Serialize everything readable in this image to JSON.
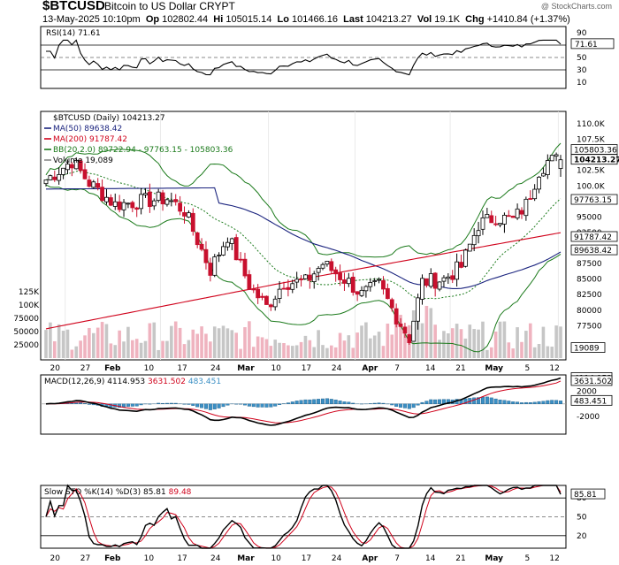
{
  "header": {
    "symbol": "$BTCUSD",
    "name": "Bitcoin to US Dollar  CRYPT",
    "date": "13-May-2025 10:10pm",
    "open_label": "Op",
    "open": "102802.44",
    "high_label": "Hi",
    "high": "105015.14",
    "low_label": "Lo",
    "low": "101466.16",
    "last_label": "Last",
    "last": "104213.27",
    "vol_label": "Vol",
    "vol": "19.1K",
    "chg_label": "Chg",
    "chg": "+1410.84 (+1.37%)",
    "watermark": "@ StockCharts.com"
  },
  "colors": {
    "up": "#000000",
    "down": "#c8102e",
    "ma50": "#1a237e",
    "ma200": "#d0021b",
    "bb": "#1b7a1b",
    "macd_hist": "#3b8fc4",
    "volume": "#c6c6c6",
    "sto_d": "#d0021b"
  },
  "chart_data": [
    {
      "panel": "rsi",
      "type": "line",
      "legend": "RSI(14) 71.61",
      "current_label": "71.61",
      "yticks": [
        "90",
        "70",
        "50",
        "30",
        "10"
      ],
      "ylim": [
        0,
        100
      ],
      "levels": [
        70,
        30
      ]
    },
    {
      "panel": "price",
      "type": "candlestick",
      "legend": [
        {
          "key": "title",
          "text": "$BTCUSD (Daily) 104213.27"
        },
        {
          "key": "ma50",
          "text": "MA(50) 89638.42"
        },
        {
          "key": "ma200",
          "text": "MA(200) 91787.42"
        },
        {
          "key": "bb",
          "text": "BB(20,2.0) 89722.94 - 97763.15 - 105803.36"
        },
        {
          "key": "volume",
          "text": "Volume 19,089"
        }
      ],
      "ylim": [
        72000,
        112000
      ],
      "yticks": [
        "110.0K",
        "107.5K",
        "102.5K",
        "100.0K",
        "95000",
        "92500",
        "87500",
        "85000",
        "82500",
        "80000",
        "77500"
      ],
      "price_tags": [
        {
          "text": "105803.36",
          "value": 105803.36,
          "bold": false
        },
        {
          "text": "104213.27",
          "value": 104213.27,
          "bold": true
        },
        {
          "text": "97763.15",
          "value": 97763.15,
          "bold": false
        },
        {
          "text": "91787.42",
          "value": 91787.42,
          "bold": false
        },
        {
          "text": "89638.42",
          "value": 89638.42,
          "bold": false
        }
      ],
      "volume_ticks": [
        "125K",
        "100K",
        "75000",
        "50000",
        "25000"
      ],
      "volume_tag": "19089",
      "x_labels": [
        "20",
        "27",
        "Feb",
        "10",
        "17",
        "24",
        "Mar",
        "10",
        "17",
        "24",
        "Apr",
        "7",
        "14",
        "21",
        "May",
        "5",
        "12"
      ]
    },
    {
      "panel": "macd",
      "type": "line",
      "legend": {
        "name": "MACD(12,26,9)",
        "macd": "4114.953",
        "signal": "3631.502",
        "hist": "483.451"
      },
      "tags": [
        "4114.953",
        "3631.502",
        "483.451"
      ],
      "yticks": [
        "2000",
        "-2000"
      ],
      "ylim": [
        -4800,
        4600
      ]
    },
    {
      "panel": "sto",
      "type": "line",
      "legend": {
        "name": "Slow STO %K(14) %D(3)",
        "k": "85.81",
        "d": "89.48"
      },
      "tag": "85.81",
      "yticks": [
        "80",
        "50",
        "20"
      ],
      "ylim": [
        0,
        100
      ],
      "x_labels": [
        "20",
        "27",
        "Feb",
        "10",
        "17",
        "24",
        "Mar",
        "10",
        "17",
        "24",
        "Apr",
        "7",
        "14",
        "21",
        "May",
        "5",
        "12"
      ]
    }
  ]
}
